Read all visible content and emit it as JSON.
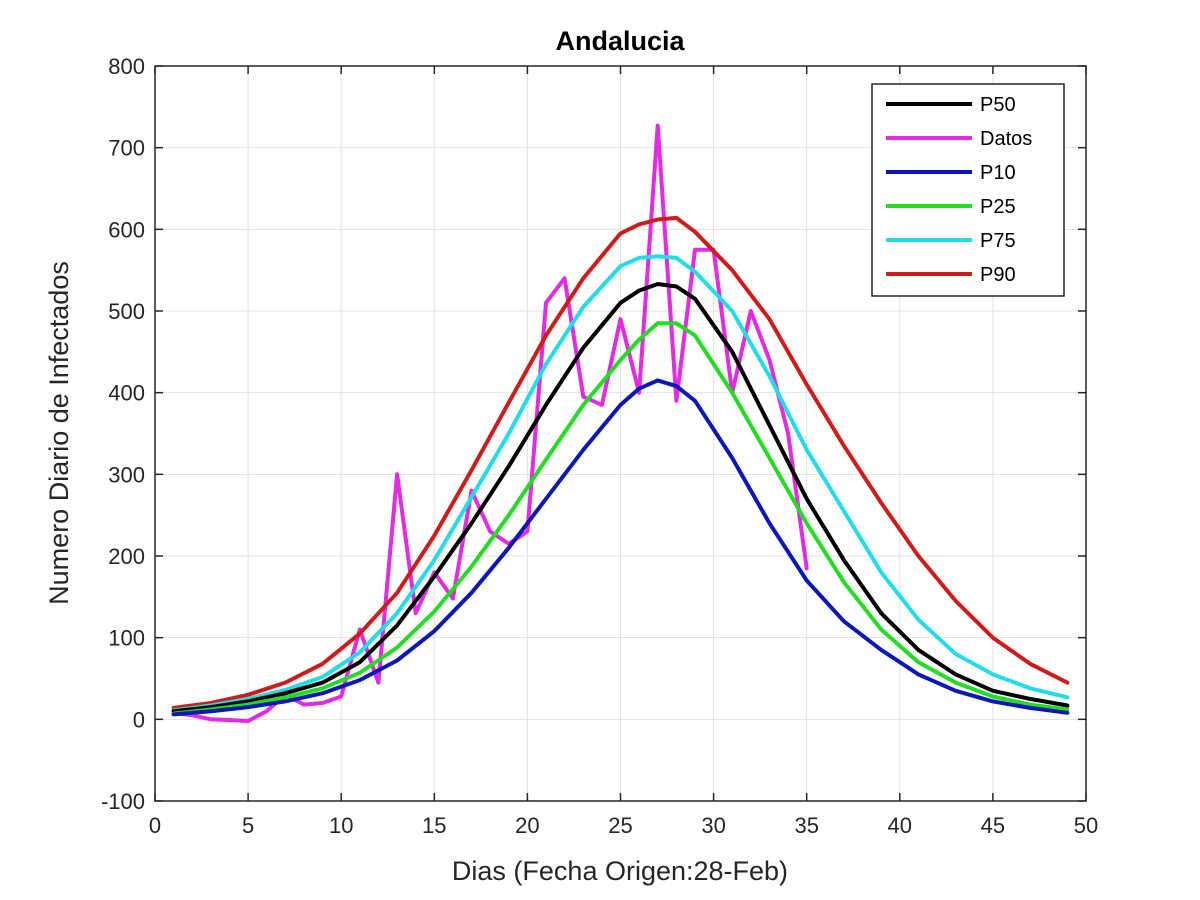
{
  "chart_data": {
    "type": "line",
    "title": "Andalucia",
    "xlabel": "Dias (Fecha Origen:28-Feb)",
    "ylabel": "Numero Diario de Infectados",
    "xlim": [
      0,
      50
    ],
    "ylim": [
      -100,
      800
    ],
    "xticks": [
      0,
      5,
      10,
      15,
      20,
      25,
      30,
      35,
      40,
      45,
      50
    ],
    "yticks": [
      -100,
      0,
      100,
      200,
      300,
      400,
      500,
      600,
      700,
      800
    ],
    "grid": true,
    "legend_position": "top-right",
    "series": [
      {
        "name": "P50",
        "color": "#000000",
        "x": [
          1,
          3,
          5,
          7,
          9,
          11,
          13,
          15,
          17,
          19,
          21,
          23,
          25,
          26,
          27,
          28,
          29,
          31,
          33,
          35,
          37,
          39,
          41,
          43,
          45,
          47,
          49
        ],
        "y": [
          10,
          15,
          22,
          32,
          45,
          70,
          115,
          175,
          240,
          310,
          385,
          455,
          510,
          525,
          533,
          530,
          515,
          450,
          360,
          270,
          195,
          130,
          85,
          55,
          35,
          25,
          17
        ]
      },
      {
        "name": "Datos",
        "color": "#e22be2",
        "x": [
          1,
          2,
          3,
          4,
          5,
          6,
          7,
          8,
          9,
          10,
          11,
          12,
          13,
          14,
          15,
          16,
          17,
          18,
          19,
          20,
          21,
          22,
          23,
          24,
          25,
          26,
          27,
          28,
          29,
          30,
          31,
          32,
          33,
          34,
          35
        ],
        "y": [
          8,
          5,
          0,
          -1,
          -2,
          10,
          30,
          18,
          20,
          28,
          110,
          45,
          300,
          130,
          180,
          148,
          280,
          230,
          215,
          230,
          510,
          540,
          395,
          385,
          490,
          400,
          727,
          390,
          575,
          575,
          400,
          500,
          440,
          350,
          185
        ]
      },
      {
        "name": "P10",
        "color": "#0b17b8",
        "x": [
          1,
          3,
          5,
          7,
          9,
          11,
          13,
          15,
          17,
          19,
          21,
          23,
          25,
          26,
          27,
          28,
          29,
          31,
          33,
          35,
          37,
          39,
          41,
          43,
          45,
          47,
          49
        ],
        "y": [
          6,
          10,
          15,
          22,
          32,
          48,
          72,
          108,
          155,
          210,
          270,
          330,
          385,
          405,
          415,
          408,
          390,
          320,
          240,
          170,
          120,
          85,
          55,
          35,
          22,
          14,
          8
        ]
      },
      {
        "name": "P25",
        "color": "#22dd22",
        "x": [
          1,
          3,
          5,
          7,
          9,
          11,
          13,
          15,
          17,
          19,
          21,
          23,
          25,
          26,
          27,
          28,
          29,
          31,
          33,
          35,
          37,
          39,
          41,
          43,
          45,
          47,
          49
        ],
        "y": [
          7,
          12,
          18,
          27,
          38,
          57,
          88,
          132,
          187,
          250,
          318,
          385,
          440,
          465,
          485,
          485,
          470,
          400,
          320,
          240,
          168,
          110,
          70,
          45,
          28,
          18,
          12
        ]
      },
      {
        "name": "P75",
        "color": "#22dde8",
        "x": [
          1,
          3,
          5,
          7,
          9,
          11,
          13,
          15,
          17,
          19,
          21,
          23,
          25,
          26,
          27,
          28,
          29,
          31,
          33,
          35,
          37,
          39,
          41,
          43,
          45,
          47,
          49
        ],
        "y": [
          11,
          17,
          25,
          36,
          52,
          82,
          130,
          195,
          272,
          350,
          435,
          505,
          555,
          565,
          567,
          565,
          548,
          500,
          420,
          330,
          255,
          180,
          122,
          80,
          55,
          38,
          27
        ]
      },
      {
        "name": "P90",
        "color": "#d11a1a",
        "x": [
          1,
          3,
          5,
          7,
          9,
          11,
          13,
          15,
          17,
          19,
          21,
          23,
          25,
          26,
          27,
          28,
          29,
          31,
          33,
          35,
          37,
          39,
          41,
          43,
          45,
          47,
          49
        ],
        "y": [
          14,
          20,
          30,
          45,
          68,
          105,
          155,
          225,
          305,
          388,
          470,
          540,
          595,
          606,
          612,
          614,
          597,
          550,
          490,
          410,
          335,
          265,
          200,
          145,
          100,
          68,
          45
        ]
      }
    ]
  }
}
